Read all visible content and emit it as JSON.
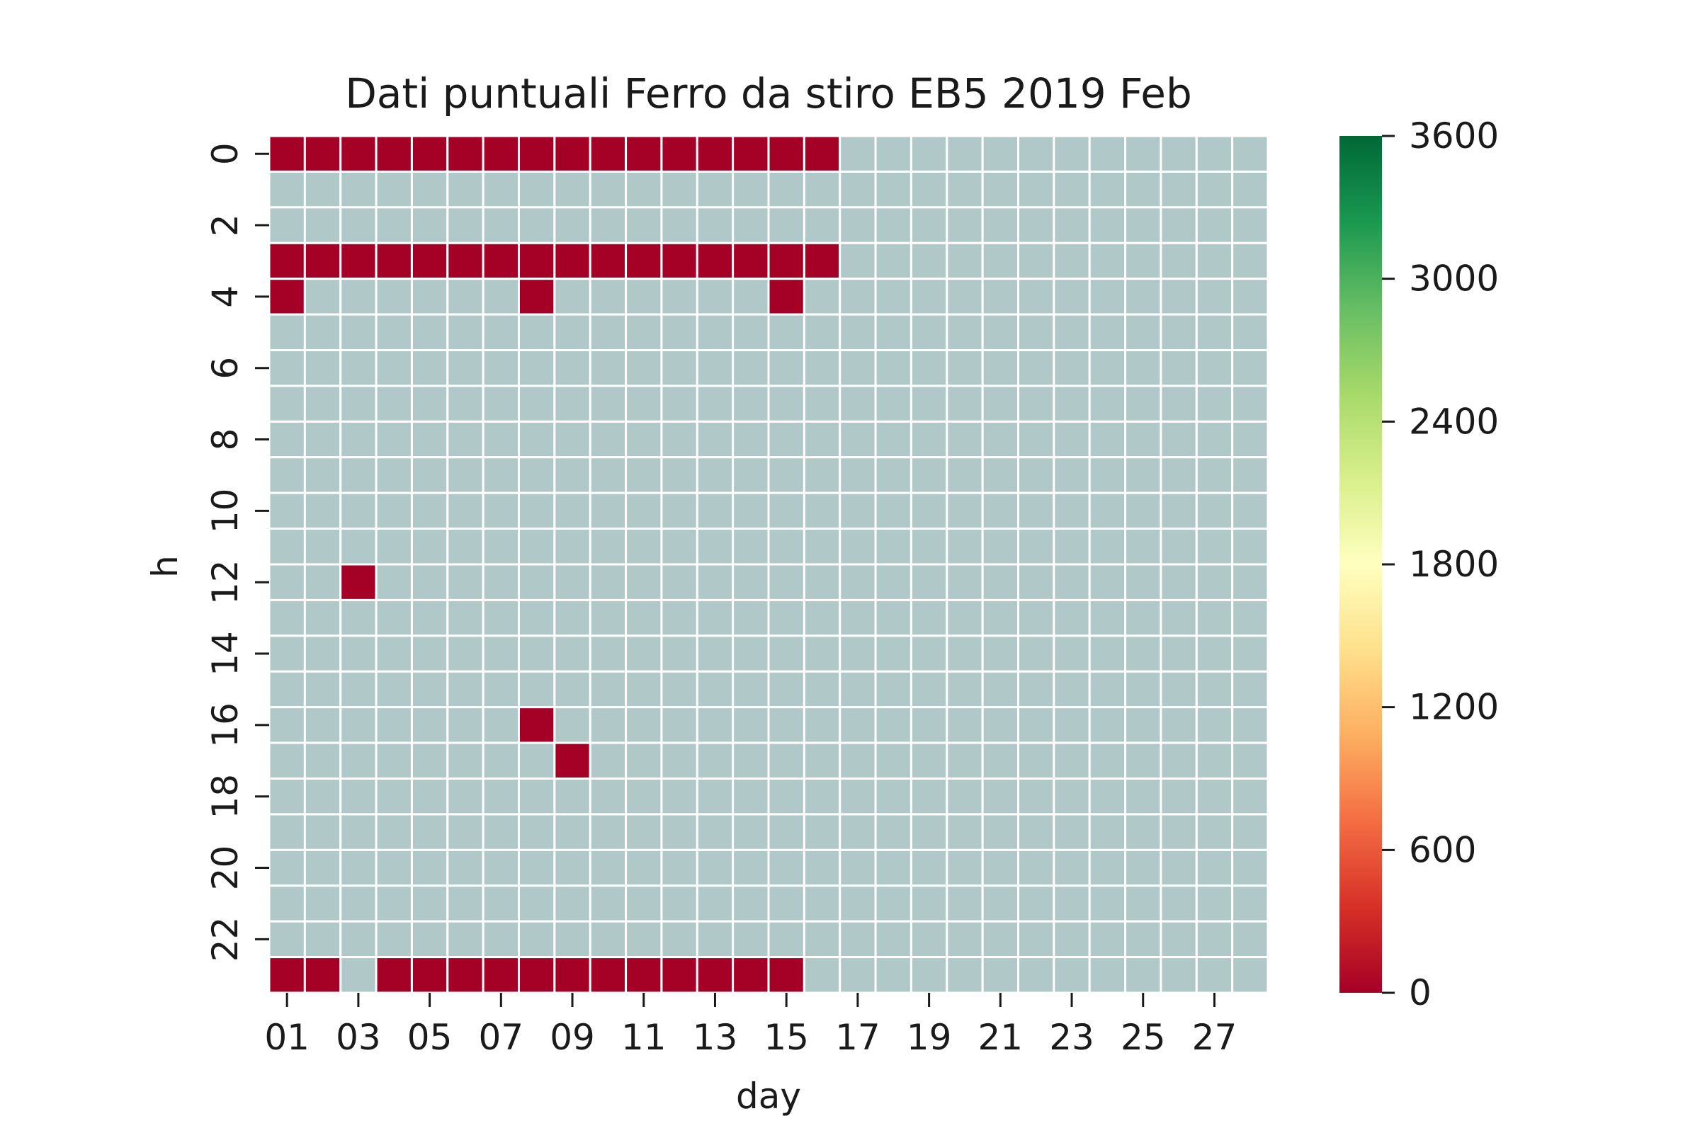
{
  "chart_data": {
    "type": "heatmap",
    "title": "Dati puntuali Ferro da stiro EB5 2019 Feb",
    "xlabel": "day",
    "ylabel": "h",
    "x_categories": [
      "01",
      "02",
      "03",
      "04",
      "05",
      "06",
      "07",
      "08",
      "09",
      "10",
      "11",
      "12",
      "13",
      "14",
      "15",
      "16",
      "17",
      "18",
      "19",
      "20",
      "21",
      "22",
      "23",
      "24",
      "25",
      "26",
      "27",
      "28"
    ],
    "x_tick_labels": [
      "01",
      "03",
      "05",
      "07",
      "09",
      "11",
      "13",
      "15",
      "17",
      "19",
      "21",
      "23",
      "25",
      "27"
    ],
    "y_categories": [
      0,
      1,
      2,
      3,
      4,
      5,
      6,
      7,
      8,
      9,
      10,
      11,
      12,
      13,
      14,
      15,
      16,
      17,
      18,
      19,
      20,
      21,
      22,
      23
    ],
    "y_tick_labels": [
      "0",
      "2",
      "4",
      "6",
      "8",
      "10",
      "12",
      "14",
      "16",
      "18",
      "20",
      "22"
    ],
    "value_range": [
      0,
      3600
    ],
    "colorbar_ticks": [
      "0",
      "600",
      "1200",
      "1800",
      "2400",
      "3000",
      "3600"
    ],
    "colormap": "RdYlGn",
    "colormap_stops": [
      "#a50026",
      "#d73027",
      "#f46d43",
      "#fdae61",
      "#fee08b",
      "#ffffbf",
      "#d9ef8b",
      "#a6d96a",
      "#66bd63",
      "#1a9850",
      "#006837"
    ],
    "missing_color": "#b0c8c8",
    "grid_line_color": "#ffffff",
    "zero_cells": [
      {
        "h": 0,
        "days": [
          "01",
          "02",
          "03",
          "04",
          "05",
          "06",
          "07",
          "08",
          "09",
          "10",
          "11",
          "12",
          "13",
          "14",
          "15",
          "16"
        ]
      },
      {
        "h": 3,
        "days": [
          "01",
          "02",
          "03",
          "04",
          "05",
          "06",
          "07",
          "08",
          "09",
          "10",
          "11",
          "12",
          "13",
          "14",
          "15",
          "16"
        ]
      },
      {
        "h": 4,
        "days": [
          "01",
          "08",
          "15"
        ]
      },
      {
        "h": 12,
        "days": [
          "03"
        ]
      },
      {
        "h": 16,
        "days": [
          "08"
        ]
      },
      {
        "h": 17,
        "days": [
          "09"
        ]
      },
      {
        "h": 23,
        "days": [
          "01",
          "02",
          "04",
          "05",
          "06",
          "07",
          "08",
          "09",
          "10",
          "11",
          "12",
          "13",
          "14",
          "15"
        ]
      }
    ],
    "zero_value": 0,
    "other_cells": "missing"
  }
}
